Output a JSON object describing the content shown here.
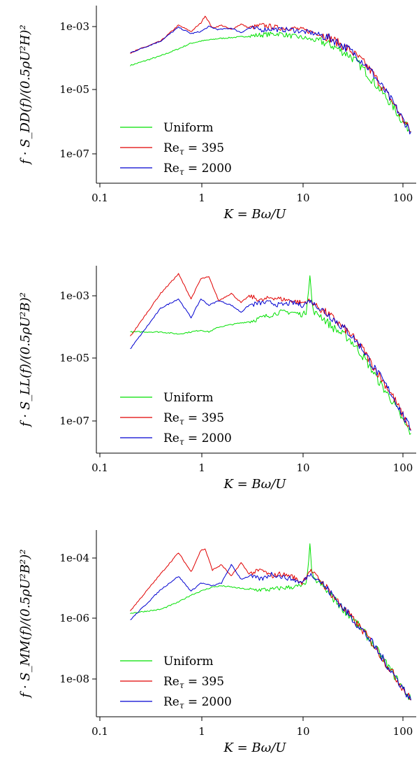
{
  "chart_data": [
    {
      "type": "line",
      "xscale": "log",
      "yscale": "log",
      "xlabel": "K = Bω/U",
      "ylabel": "f · S_DD(f)/(0.5ρU²H)²",
      "xlim": [
        0.13,
        120
      ],
      "ylim": [
        1e-08,
        0.01
      ],
      "xticks": [
        "0.1",
        "1",
        "10",
        "100"
      ],
      "yticks": [
        "1e-03",
        "1e-05",
        "1e-07"
      ],
      "grid": false,
      "legend_position": "bottom-left",
      "colors": {
        "Uniform": "#00e000",
        "Re395": "#e00000",
        "Re2000": "#0000d0"
      },
      "series": [
        {
          "name": "Uniform",
          "label": "Uniform",
          "x": [
            0.2,
            0.4,
            0.6,
            0.8,
            1.0,
            1.2,
            1.5,
            2,
            3,
            4,
            5,
            6,
            8,
            10,
            12,
            15,
            20,
            30,
            40,
            50,
            60,
            80,
            100,
            120
          ],
          "y": [
            6e-05,
            0.00012,
            0.0002,
            0.0003,
            0.00035,
            0.00038,
            0.00042,
            0.00045,
            0.0005,
            0.00055,
            0.00058,
            0.0006,
            0.0005,
            0.00045,
            0.0004,
            0.00035,
            0.00025,
            0.00012,
            5e-05,
            2e-05,
            1e-05,
            3e-06,
            1e-06,
            5e-07
          ]
        },
        {
          "name": "Re395",
          "label_prefix": "Re",
          "label_sub": "τ",
          "label_suffix": " = 395",
          "x": [
            0.2,
            0.4,
            0.6,
            0.8,
            1.0,
            1.1,
            1.3,
            1.6,
            2,
            2.5,
            3,
            4,
            5,
            6,
            8,
            10,
            12,
            15,
            20,
            30,
            40,
            50,
            60,
            80,
            100,
            120
          ],
          "y": [
            0.00015,
            0.00035,
            0.0011,
            0.0007,
            0.0013,
            0.0022,
            0.0009,
            0.0011,
            0.0008,
            0.0012,
            0.0009,
            0.0011,
            0.001,
            0.0009,
            0.0009,
            0.0008,
            0.0007,
            0.0006,
            0.0004,
            0.00018,
            8e-05,
            3.5e-05,
            1.5e-05,
            4e-06,
            1.2e-06,
            5e-07
          ]
        },
        {
          "name": "Re2000",
          "label_prefix": "Re",
          "label_sub": "τ",
          "label_suffix": " = 2000",
          "x": [
            0.2,
            0.4,
            0.6,
            0.8,
            1.0,
            1.2,
            1.5,
            2,
            2.5,
            3,
            4,
            5,
            6,
            8,
            10,
            12,
            15,
            20,
            30,
            40,
            50,
            60,
            80,
            100,
            120
          ],
          "y": [
            0.00015,
            0.00035,
            0.00095,
            0.0006,
            0.0007,
            0.001,
            0.0008,
            0.0009,
            0.00065,
            0.0009,
            0.0008,
            0.00085,
            0.0008,
            0.0008,
            0.0007,
            0.00065,
            0.00055,
            0.0004,
            0.00018,
            8e-05,
            3.5e-05,
            1.5e-05,
            4e-06,
            1.2e-06,
            5e-07
          ]
        }
      ]
    },
    {
      "type": "line",
      "xscale": "log",
      "yscale": "log",
      "xlabel": "K = Bω/U",
      "ylabel": "f · S_LL(f)/(0.5ρU²B)²",
      "xlim": [
        0.13,
        120
      ],
      "ylim": [
        1e-08,
        0.01
      ],
      "xticks": [
        "0.1",
        "1",
        "10",
        "100"
      ],
      "yticks": [
        "1e-03",
        "1e-05",
        "1e-07"
      ],
      "grid": false,
      "legend_position": "bottom-left",
      "colors": {
        "Uniform": "#00e000",
        "Re395": "#e00000",
        "Re2000": "#0000d0"
      },
      "series": [
        {
          "name": "Uniform",
          "label": "Uniform",
          "x": [
            0.2,
            0.4,
            0.6,
            0.8,
            1.0,
            1.2,
            1.5,
            2,
            3,
            4,
            5,
            6,
            8,
            10,
            11,
            12,
            12.5,
            13,
            15,
            20,
            30,
            40,
            50,
            60,
            80,
            100,
            120
          ],
          "y": [
            7e-05,
            7e-05,
            6e-05,
            7e-05,
            8e-05,
            7e-05,
            0.0001,
            0.00012,
            0.00015,
            0.0002,
            0.00025,
            0.0003,
            0.0003,
            0.00025,
            0.0003,
            0.0045,
            0.0008,
            0.0003,
            0.00025,
            0.0001,
            4e-05,
            1.2e-05,
            4e-06,
            1.5e-06,
            4e-07,
            1e-07,
            4e-08
          ]
        },
        {
          "name": "Re395",
          "label_prefix": "Re",
          "label_sub": "τ",
          "label_suffix": " = 395",
          "x": [
            0.2,
            0.4,
            0.6,
            0.8,
            1.0,
            1.2,
            1.5,
            2,
            2.5,
            3,
            4,
            5,
            6,
            8,
            10,
            12,
            15,
            20,
            30,
            40,
            50,
            60,
            80,
            100,
            120
          ],
          "y": [
            5e-05,
            0.0012,
            0.005,
            0.0008,
            0.0035,
            0.004,
            0.0007,
            0.0012,
            0.0006,
            0.001,
            0.0007,
            0.0009,
            0.0008,
            0.0007,
            0.0006,
            0.0007,
            0.0004,
            0.0002,
            6e-05,
            2e-05,
            6e-06,
            2.5e-06,
            6e-07,
            1.5e-07,
            5e-08
          ]
        },
        {
          "name": "Re2000",
          "label_prefix": "Re",
          "label_sub": "τ",
          "label_suffix": " = 2000",
          "x": [
            0.2,
            0.4,
            0.6,
            0.8,
            1.0,
            1.2,
            1.5,
            2,
            2.5,
            3,
            4,
            5,
            6,
            8,
            10,
            12,
            15,
            20,
            30,
            40,
            50,
            60,
            80,
            100,
            120
          ],
          "y": [
            2e-05,
            0.0004,
            0.0008,
            0.0002,
            0.0008,
            0.0005,
            0.0007,
            0.0005,
            0.0003,
            0.0005,
            0.0006,
            0.0006,
            0.0005,
            0.0006,
            0.0005,
            0.0007,
            0.0004,
            0.0002,
            6e-05,
            2e-05,
            6e-06,
            2.5e-06,
            6e-07,
            1.5e-07,
            5e-08
          ]
        }
      ]
    },
    {
      "type": "line",
      "xscale": "log",
      "yscale": "log",
      "xlabel": "K = Bω/U",
      "ylabel": "f · S_MM(f)/(0.5ρU²B²)²",
      "xlim": [
        0.13,
        120
      ],
      "ylim": [
        1e-09,
        0.0005
      ],
      "xticks": [
        "0.1",
        "1",
        "10",
        "100"
      ],
      "yticks": [
        "1e-04",
        "1e-06",
        "1e-08"
      ],
      "grid": false,
      "legend_position": "bottom-left",
      "colors": {
        "Uniform": "#00e000",
        "Re395": "#e00000",
        "Re2000": "#0000d0"
      },
      "series": [
        {
          "name": "Uniform",
          "label": "Uniform",
          "x": [
            0.2,
            0.4,
            0.6,
            0.8,
            1.0,
            1.3,
            1.6,
            2,
            3,
            4,
            5,
            6,
            8,
            10,
            11,
            12,
            12.5,
            13,
            15,
            20,
            30,
            40,
            50,
            60,
            80,
            100,
            120
          ],
          "y": [
            1.5e-06,
            2e-06,
            3.5e-06,
            6e-06,
            8e-06,
            1.1e-05,
            1.2e-05,
            1.1e-05,
            9e-06,
            9e-06,
            9e-06,
            1e-05,
            1.1e-05,
            1.2e-05,
            1.3e-05,
            0.00025,
            4e-05,
            2e-05,
            1.5e-05,
            5e-06,
            1.2e-06,
            4e-07,
            1.5e-07,
            6e-08,
            1.5e-08,
            5e-09,
            2e-09
          ]
        },
        {
          "name": "Re395",
          "label_prefix": "Re",
          "label_sub": "τ",
          "label_suffix": " = 395",
          "x": [
            0.2,
            0.4,
            0.6,
            0.8,
            1.0,
            1.1,
            1.3,
            1.6,
            2,
            2.5,
            3,
            4,
            5,
            6,
            8,
            10,
            12,
            15,
            20,
            30,
            40,
            50,
            60,
            80,
            100,
            120
          ],
          "y": [
            1.8e-06,
            3e-05,
            0.00015,
            3.5e-05,
            0.00018,
            0.0002,
            4e-05,
            6e-05,
            2.5e-05,
            7e-05,
            3e-05,
            4e-05,
            2.5e-05,
            3e-05,
            2.5e-05,
            1.5e-05,
            4e-05,
            2e-05,
            6e-06,
            1.2e-06,
            4e-07,
            1.5e-07,
            6e-08,
            1.5e-08,
            5e-09,
            2e-09
          ]
        },
        {
          "name": "Re2000",
          "label_prefix": "Re",
          "label_sub": "τ",
          "label_suffix": " = 2000",
          "x": [
            0.2,
            0.4,
            0.6,
            0.8,
            1.0,
            1.3,
            1.6,
            2,
            2.5,
            3,
            4,
            5,
            6,
            8,
            10,
            12,
            15,
            20,
            30,
            40,
            50,
            60,
            80,
            100,
            120
          ],
          "y": [
            9e-07,
            9e-06,
            2.5e-05,
            8e-06,
            1.5e-05,
            1.2e-05,
            1.5e-05,
            6e-05,
            2e-05,
            2.5e-05,
            2e-05,
            3e-05,
            2.5e-05,
            2e-05,
            1.5e-05,
            3e-05,
            1.8e-05,
            6e-06,
            1.2e-06,
            4e-07,
            1.5e-07,
            6e-08,
            1.5e-08,
            5e-09,
            2e-09
          ]
        }
      ]
    }
  ]
}
